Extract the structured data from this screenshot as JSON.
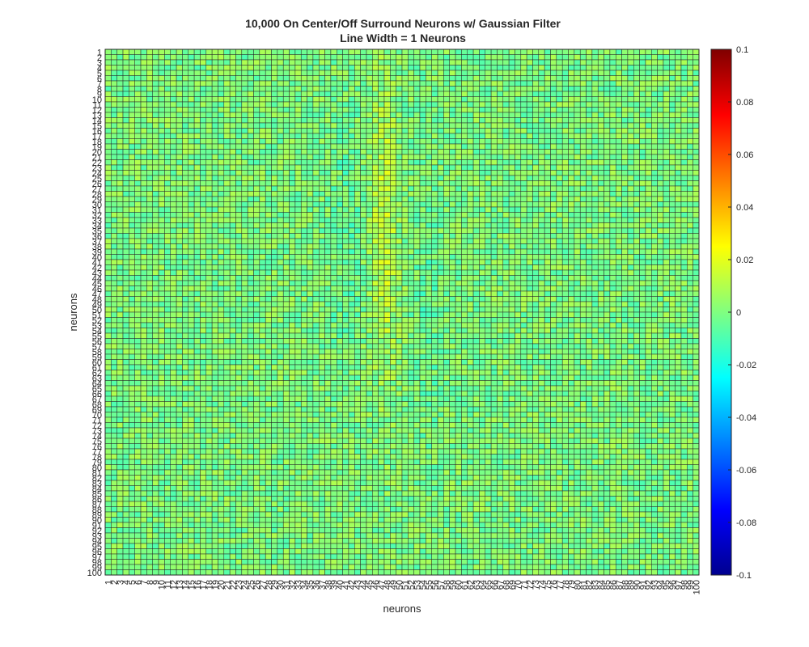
{
  "chart_data": {
    "type": "heatmap",
    "title": "10,000 On Center/Off Surround Neurons w/ Gaussian Filter",
    "subtitle": "Line Width = 1 Neurons",
    "xlabel": "neurons",
    "ylabel": "neurons",
    "rows": 100,
    "cols": 100,
    "x_ticks": [
      1,
      2,
      3,
      4,
      5,
      6,
      7,
      8,
      9,
      10,
      11,
      12,
      13,
      14,
      15,
      16,
      17,
      18,
      19,
      20,
      21,
      22,
      23,
      24,
      25,
      26,
      27,
      28,
      29,
      30,
      31,
      32,
      33,
      34,
      35,
      36,
      37,
      38,
      39,
      40,
      41,
      42,
      43,
      44,
      45,
      46,
      47,
      48,
      49,
      50,
      51,
      52,
      53,
      54,
      55,
      56,
      57,
      58,
      59,
      60,
      61,
      62,
      63,
      64,
      65,
      66,
      67,
      68,
      69,
      70,
      71,
      72,
      73,
      74,
      75,
      76,
      77,
      78,
      79,
      80,
      81,
      82,
      83,
      84,
      85,
      86,
      87,
      88,
      89,
      90,
      91,
      92,
      93,
      94,
      95,
      96,
      97,
      98,
      99,
      100
    ],
    "y_ticks": [
      1,
      2,
      3,
      4,
      5,
      6,
      7,
      8,
      9,
      10,
      11,
      12,
      13,
      14,
      15,
      16,
      17,
      18,
      19,
      20,
      21,
      22,
      23,
      24,
      25,
      26,
      27,
      28,
      29,
      30,
      31,
      32,
      33,
      34,
      35,
      36,
      37,
      38,
      39,
      40,
      41,
      42,
      43,
      44,
      45,
      46,
      47,
      48,
      49,
      50,
      51,
      52,
      53,
      54,
      55,
      56,
      57,
      58,
      59,
      60,
      61,
      62,
      63,
      64,
      65,
      66,
      67,
      68,
      69,
      70,
      71,
      72,
      73,
      74,
      75,
      76,
      77,
      78,
      79,
      80,
      81,
      82,
      83,
      84,
      85,
      86,
      87,
      88,
      89,
      90,
      91,
      92,
      93,
      94,
      95,
      96,
      97,
      98,
      99,
      100
    ],
    "color_limits": [
      -0.1,
      0.1
    ],
    "colorbar_ticks": [
      "0.1",
      "0.08",
      "0.06",
      "0.04",
      "0.02",
      "0",
      "-0.02",
      "-0.04",
      "-0.06",
      "-0.08",
      "-0.1"
    ],
    "colormap": "jet",
    "grid": true,
    "grid_color": "#262626",
    "value_range": [
      -0.02,
      0.025
    ],
    "value_description": "Values mostly near 0 with random noise (about -0.015 to 0.015); a band of positive values (about 0.01 to 0.025) around columns 45-50, rows 10-60; slight negative band around columns 38-43 and 53-57."
  }
}
